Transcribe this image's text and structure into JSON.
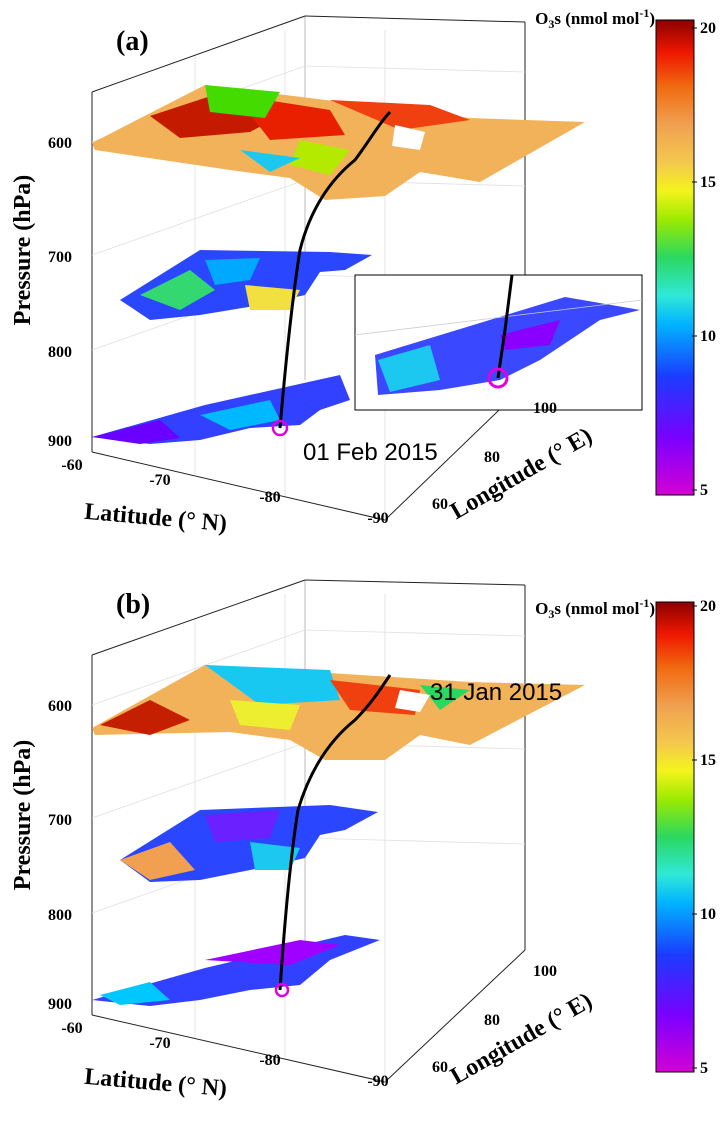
{
  "colorbar": {
    "label_base": "O",
    "label_sub": "3",
    "label_rest": "s (nmol mol",
    "label_sup": "-1",
    "label_end": ")",
    "ticks": [
      "5",
      "10",
      "15",
      "20"
    ],
    "range": [
      5,
      20
    ],
    "colors": [
      "#d400d4",
      "#8f00ff",
      "#4a26ff",
      "#1f4cff",
      "#0080ff",
      "#00c8ff",
      "#33e8dc",
      "#25d86a",
      "#41e000",
      "#b8ee00",
      "#f2f21c",
      "#f3cf4a",
      "#f1a95a",
      "#f07a22",
      "#ff2a00",
      "#df0000",
      "#8c0000"
    ]
  },
  "chart_data": [
    {
      "type": "heatmap",
      "panel_label": "(a)",
      "date": "01 Feb 2015",
      "ylabel": "Pressure (hPa)",
      "xlabel": "Latitude (° N)",
      "zlabel": "Longitude (° E)",
      "pressure_ticks": [
        "600",
        "700",
        "800",
        "900"
      ],
      "latitude_ticks": [
        "-60",
        "-70",
        "-80",
        "-90"
      ],
      "longitude_ticks": [
        "60",
        "80",
        "100"
      ],
      "pressure_levels": [
        600,
        750,
        900
      ],
      "has_inset": true
    },
    {
      "type": "heatmap",
      "panel_label": "(b)",
      "date": "31 Jan 2015",
      "ylabel": "Pressure (hPa)",
      "xlabel": "Latitude (° N)",
      "zlabel": "Longitude (° E)",
      "pressure_ticks": [
        "600",
        "700",
        "800",
        "900"
      ],
      "latitude_ticks": [
        "-60",
        "-70",
        "-80",
        "-90"
      ],
      "longitude_ticks": [
        "60",
        "80",
        "100"
      ],
      "pressure_levels": [
        600,
        750,
        900
      ],
      "has_inset": false
    }
  ]
}
